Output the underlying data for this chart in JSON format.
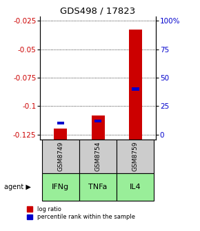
{
  "title": "GDS498 / 17823",
  "samples": [
    "GSM8749",
    "GSM8754",
    "GSM8759"
  ],
  "agents": [
    "IFNg",
    "TNFa",
    "IL4"
  ],
  "log_ratios": [
    -0.1195,
    -0.108,
    -0.033
  ],
  "percentile_ranks": [
    10.0,
    12.0,
    40.0
  ],
  "y_min": -0.1295,
  "y_max": -0.021,
  "y_ticks_left": [
    -0.025,
    -0.05,
    -0.075,
    -0.1,
    -0.125
  ],
  "y_ticks_right": [
    100,
    75,
    50,
    25,
    0
  ],
  "bar_color": "#cc0000",
  "blue_color": "#0000cc",
  "title_color": "#000000",
  "left_tick_color": "#cc0000",
  "right_tick_color": "#0000cc",
  "sample_bg_color": "#cccccc",
  "agent_bg": "#99ee99",
  "bar_bottom": -0.1295,
  "bar_width": 0.35
}
